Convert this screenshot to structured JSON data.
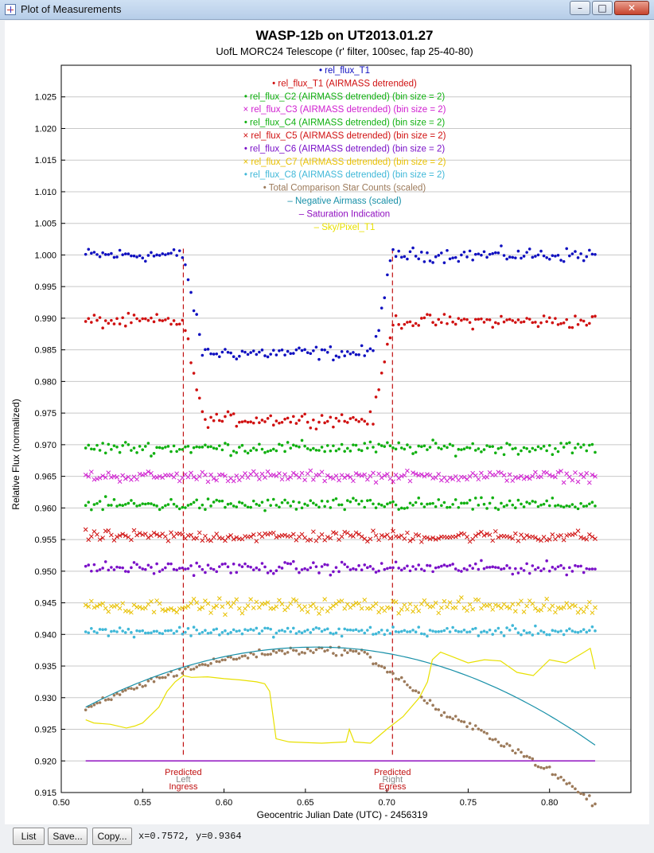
{
  "window": {
    "title": "Plot of Measurements",
    "minimize_icon": "minimize-icon",
    "maximize_icon": "maximize-icon",
    "close_icon": "close-icon"
  },
  "buttons": {
    "list": "List",
    "save": "Save...",
    "copy": "Copy..."
  },
  "cursor_readout": "x=0.7572, y=0.9364",
  "colors": {
    "blue": "#1010c0",
    "red": "#d01010",
    "green": "#10b010",
    "magenta": "#d020d0",
    "purple": "#7a10c8",
    "orange": "#e8c000",
    "cyan": "#40b8d8",
    "brown": "#9c7a5a",
    "teal": "#1890a8",
    "violet": "#9010c0",
    "yellow": "#e8e000"
  },
  "chart_data": {
    "type": "scatter",
    "title": "WASP-12b on UT2013.01.27",
    "subtitle": "UofL MORC24 Telescope (r' filter, 100sec, fap 25-40-80)",
    "xlabel": "Geocentric Julian Date (UTC) - 2456319",
    "ylabel": "Relative Flux (normalized)",
    "xlim": [
      0.5,
      0.85
    ],
    "ylim": [
      0.915,
      1.03
    ],
    "xticks": [
      "0.50",
      "0.55",
      "0.60",
      "0.65",
      "0.70",
      "0.75",
      "0.80"
    ],
    "yticks": [
      "0.915",
      "0.920",
      "0.925",
      "0.930",
      "0.935",
      "0.940",
      "0.945",
      "0.950",
      "0.955",
      "0.960",
      "0.965",
      "0.970",
      "0.975",
      "0.980",
      "0.985",
      "0.990",
      "0.995",
      "1.000",
      "1.005",
      "1.010",
      "1.015",
      "1.020",
      "1.025"
    ],
    "grid": "horizontal",
    "legend_placement": "top-center",
    "x_start": 0.515,
    "x_end": 0.828,
    "n_points": 180,
    "markers": [
      {
        "x": 0.575,
        "lines": [
          "Predicted",
          "Left",
          "Ingress"
        ]
      },
      {
        "x": 0.7035,
        "lines": [
          "Predicted",
          "Right",
          "Egress"
        ]
      }
    ],
    "series": [
      {
        "name": "rel_flux_T1",
        "symbol": "dot",
        "color": "#1010c0",
        "kind": "transit",
        "oot": 1.0,
        "depth": 0.0155,
        "scatter": 0.0016
      },
      {
        "name": "rel_flux_T1 (AIRMASS detrended)",
        "symbol": "dot",
        "color": "#d01010",
        "kind": "transit",
        "oot": 0.9895,
        "depth": 0.0155,
        "scatter": 0.0016
      },
      {
        "name": "rel_flux_C2 (AIRMASS detrended) (bin size = 2)",
        "symbol": "dot",
        "color": "#10b010",
        "kind": "flat",
        "level": 0.9695,
        "scatter": 0.0015
      },
      {
        "name": "rel_flux_C3 (AIRMASS detrended) (bin size = 2)",
        "symbol": "x",
        "color": "#d020d0",
        "kind": "flat",
        "level": 0.965,
        "scatter": 0.0012
      },
      {
        "name": "rel_flux_C4 (AIRMASS detrended) (bin size = 2)",
        "symbol": "dot",
        "color": "#10b010",
        "kind": "flat",
        "level": 0.9605,
        "scatter": 0.0015
      },
      {
        "name": "rel_flux_C5 (AIRMASS detrended) (bin size = 2)",
        "symbol": "x",
        "color": "#d01010",
        "kind": "flat",
        "level": 0.9555,
        "scatter": 0.0013
      },
      {
        "name": "rel_flux_C6 (AIRMASS detrended) (bin size = 2)",
        "symbol": "dot",
        "color": "#7a10c8",
        "kind": "flat",
        "level": 0.9505,
        "scatter": 0.0014
      },
      {
        "name": "rel_flux_C7 (AIRMASS detrended) (bin size = 2)",
        "symbol": "x",
        "color": "#e8c000",
        "kind": "flat",
        "level": 0.9445,
        "scatter": 0.0016
      },
      {
        "name": "rel_flux_C8 (AIRMASS detrended) (bin size = 2)",
        "symbol": "dot",
        "color": "#40b8d8",
        "kind": "flat",
        "level": 0.9405,
        "scatter": 0.0011
      },
      {
        "name": "Total Comparison Star Counts (scaled)",
        "symbol": "dot",
        "color": "#9c7a5a",
        "kind": "counts"
      },
      {
        "name": "Negative Airmass (scaled)",
        "symbol": "line",
        "color": "#1890a8",
        "kind": "curve",
        "peak_x": 0.657,
        "peak_y": 0.938,
        "start_y": 0.9285,
        "end_y": 0.9225
      },
      {
        "name": "Saturation Indication",
        "symbol": "line",
        "color": "#9010c0",
        "kind": "hline",
        "level": 0.92
      },
      {
        "name": "Sky/Pixel_T1",
        "symbol": "line",
        "color": "#e8e000",
        "kind": "path",
        "x": [
          0.515,
          0.52,
          0.53,
          0.54,
          0.545,
          0.55,
          0.56,
          0.565,
          0.57,
          0.575,
          0.58,
          0.59,
          0.6,
          0.61,
          0.62,
          0.625,
          0.628,
          0.632,
          0.64,
          0.66,
          0.675,
          0.677,
          0.68,
          0.69,
          0.7,
          0.71,
          0.72,
          0.725,
          0.728,
          0.733,
          0.74,
          0.75,
          0.76,
          0.77,
          0.78,
          0.79,
          0.8,
          0.81,
          0.82,
          0.825,
          0.828
        ],
        "y": [
          0.9265,
          0.926,
          0.9258,
          0.9252,
          0.9255,
          0.926,
          0.9285,
          0.931,
          0.9325,
          0.9335,
          0.9332,
          0.9333,
          0.933,
          0.9328,
          0.9325,
          0.9322,
          0.931,
          0.9235,
          0.923,
          0.9228,
          0.923,
          0.925,
          0.923,
          0.9228,
          0.925,
          0.927,
          0.93,
          0.9325,
          0.936,
          0.9372,
          0.9365,
          0.9355,
          0.936,
          0.9358,
          0.934,
          0.9335,
          0.936,
          0.9355,
          0.937,
          0.9378,
          0.9345
        ]
      }
    ]
  }
}
